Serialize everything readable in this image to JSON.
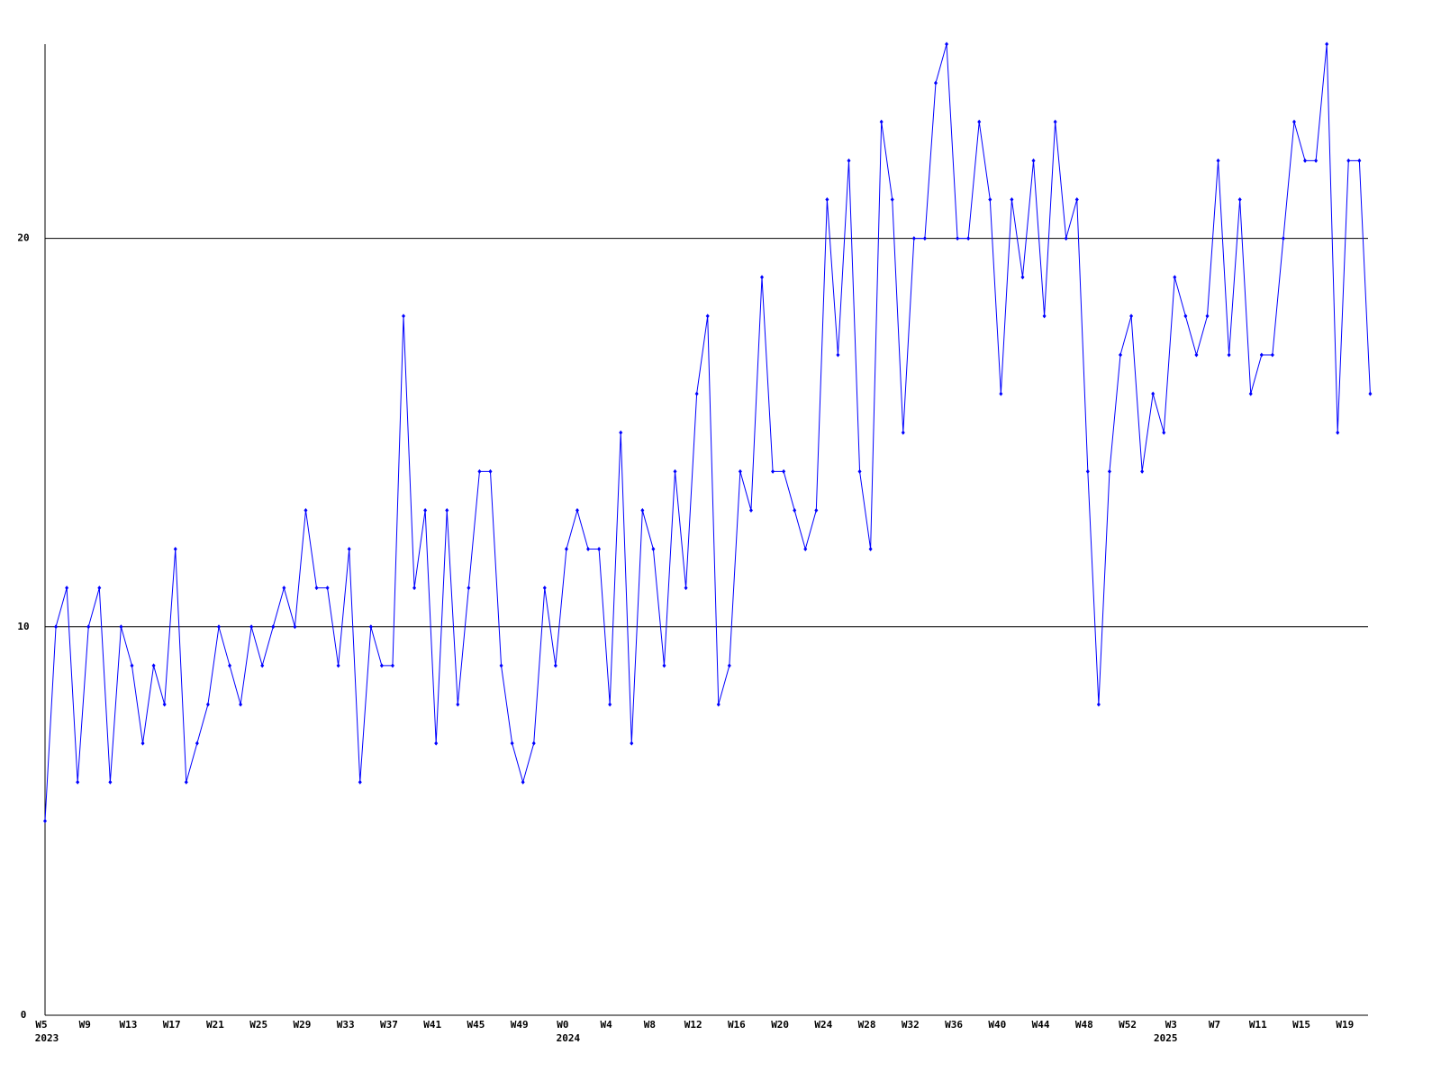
{
  "chart_data": {
    "type": "line",
    "categories": [
      "W5",
      null,
      null,
      null,
      "W9",
      null,
      null,
      null,
      "W13",
      null,
      null,
      null,
      "W17",
      null,
      null,
      null,
      "W21",
      null,
      null,
      null,
      "W25",
      null,
      null,
      null,
      "W29",
      null,
      null,
      null,
      "W33",
      null,
      null,
      null,
      "W37",
      null,
      null,
      null,
      "W41",
      null,
      null,
      null,
      "W45",
      null,
      null,
      null,
      "W49",
      null,
      null,
      null,
      "W0",
      null,
      null,
      null,
      "W4",
      null,
      null,
      null,
      "W8",
      null,
      null,
      null,
      "W12",
      null,
      null,
      null,
      "W16",
      null,
      null,
      null,
      "W20",
      null,
      null,
      null,
      "W24",
      null,
      null,
      null,
      "W28",
      null,
      null,
      null,
      "W32",
      null,
      null,
      null,
      "W36",
      null,
      null,
      null,
      "W40",
      null,
      null,
      null,
      "W44",
      null,
      null,
      null,
      "W48",
      null,
      null,
      null,
      "W52",
      null,
      null,
      null,
      "W3",
      null,
      null,
      null,
      "W7",
      null,
      null,
      null,
      "W11",
      null,
      null,
      null,
      "W15",
      null,
      null,
      null,
      "W19",
      null,
      null
    ],
    "years": [
      "2023",
      null,
      null,
      null,
      null,
      null,
      null,
      null,
      null,
      null,
      null,
      null,
      null,
      null,
      null,
      null,
      null,
      null,
      null,
      null,
      null,
      null,
      null,
      null,
      null,
      null,
      null,
      null,
      null,
      null,
      null,
      null,
      null,
      null,
      null,
      null,
      null,
      null,
      null,
      null,
      null,
      null,
      null,
      null,
      null,
      null,
      null,
      null,
      "2024",
      null,
      null,
      null,
      null,
      null,
      null,
      null,
      null,
      null,
      null,
      null,
      null,
      null,
      null,
      null,
      null,
      null,
      null,
      null,
      null,
      null,
      null,
      null,
      null,
      null,
      null,
      null,
      null,
      null,
      null,
      null,
      null,
      null,
      null,
      null,
      null,
      null,
      null,
      null,
      null,
      null,
      null,
      null,
      null,
      null,
      null,
      null,
      null,
      null,
      null,
      null,
      null,
      null,
      null,
      "2025",
      null,
      null,
      null,
      null,
      null,
      null,
      null,
      null,
      null,
      null,
      null,
      null,
      null,
      null,
      null,
      null,
      null,
      null,
      null,
      null,
      null
    ],
    "series": [
      {
        "color": "#0000ff",
        "values": [
          5,
          10,
          11,
          6,
          10,
          11,
          6,
          10,
          9,
          7,
          9,
          8,
          12,
          6,
          7,
          8,
          10,
          9,
          8,
          10,
          9,
          10,
          11,
          10,
          13,
          11,
          11,
          9,
          12,
          6,
          10,
          9,
          9,
          18,
          11,
          13,
          7,
          13,
          8,
          11,
          14,
          14,
          9,
          7,
          6,
          7,
          11,
          9,
          12,
          13,
          12,
          12,
          8,
          15,
          7,
          13,
          12,
          9,
          14,
          11,
          16,
          18,
          8,
          9,
          14,
          13,
          19,
          14,
          14,
          13,
          12,
          13,
          21,
          17,
          22,
          14,
          12,
          23,
          21,
          15,
          20,
          20,
          24,
          25,
          20,
          20,
          23,
          21,
          16,
          21,
          19,
          22,
          18,
          23,
          20,
          21,
          14,
          8,
          14,
          17,
          18,
          14,
          16,
          15,
          19,
          18,
          17,
          18,
          22,
          17,
          21,
          16,
          17,
          17,
          20,
          23,
          22,
          22,
          25,
          15,
          22,
          22,
          16
        ]
      }
    ],
    "ylim": [
      0,
      25
    ],
    "yticks": [
      0,
      10,
      20
    ],
    "grid": true
  }
}
